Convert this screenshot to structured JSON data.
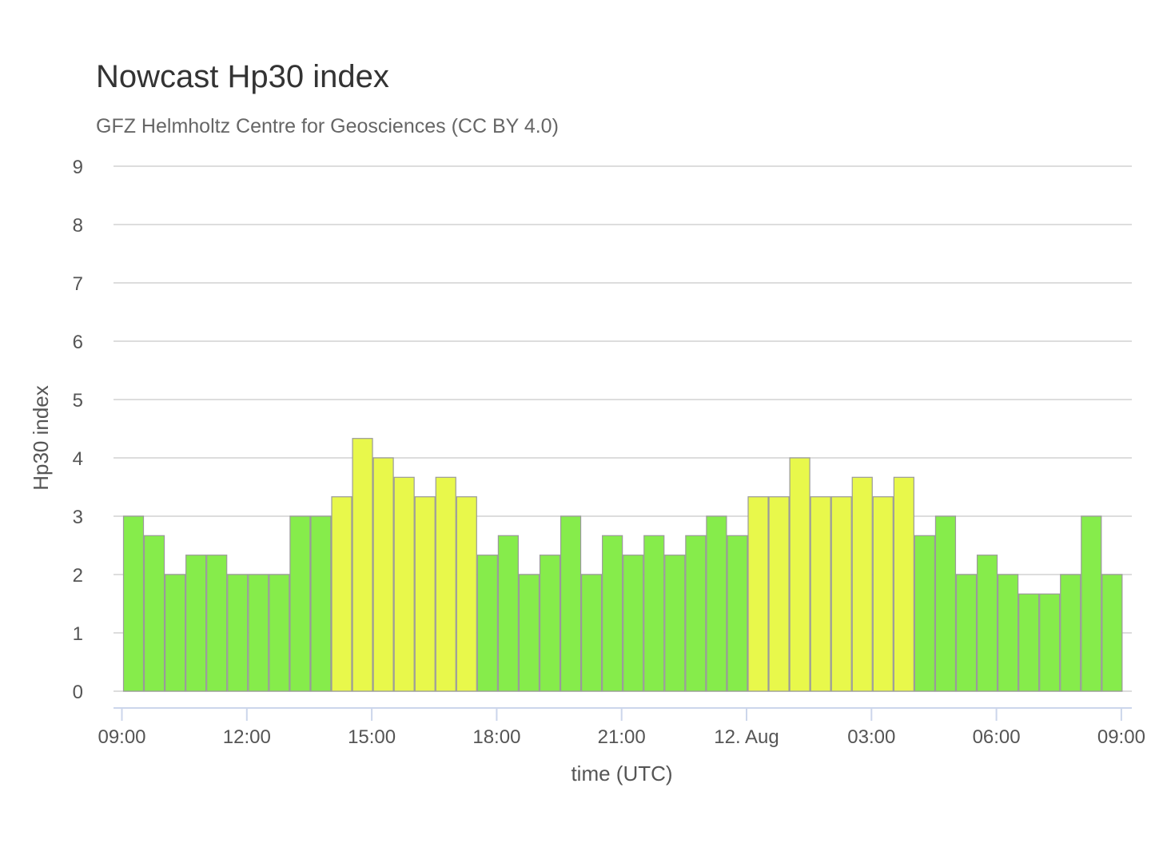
{
  "colors": {
    "low": "#86ec4b",
    "high": "#e8f84b",
    "grid": "#dddddd",
    "axis": "#ccd6eb",
    "text": "#555555"
  },
  "chart_data": {
    "type": "bar",
    "title": "Nowcast Hp30 index",
    "subtitle": "GFZ Helmholtz Centre for Geosciences (CC BY 4.0)",
    "xlabel": "time (UTC)",
    "ylabel": "Hp30 index",
    "ylim": [
      0,
      9
    ],
    "yticks": [
      "0",
      "1",
      "2",
      "3",
      "4",
      "5",
      "6",
      "7",
      "8",
      "9"
    ],
    "xticks": [
      "09:00",
      "12:00",
      "15:00",
      "18:00",
      "21:00",
      "12. Aug",
      "03:00",
      "06:00",
      "09:00"
    ],
    "x_start": "11. Aug 09:00",
    "interval": "30 min",
    "grid": true,
    "legend": false,
    "values": [
      3,
      2.667,
      2,
      2.333,
      2.333,
      2,
      2,
      2,
      3,
      3,
      3.333,
      4.333,
      4,
      3.667,
      3.333,
      3.667,
      3.333,
      2.333,
      2.667,
      2,
      2.333,
      3,
      2,
      2.667,
      2.333,
      2.667,
      2.333,
      2.667,
      3,
      2.667,
      3.333,
      3.333,
      4,
      3.333,
      3.333,
      3.667,
      3.333,
      3.667,
      2.667,
      3,
      2,
      2.333,
      2,
      1.667,
      1.667,
      2,
      3,
      2
    ]
  }
}
